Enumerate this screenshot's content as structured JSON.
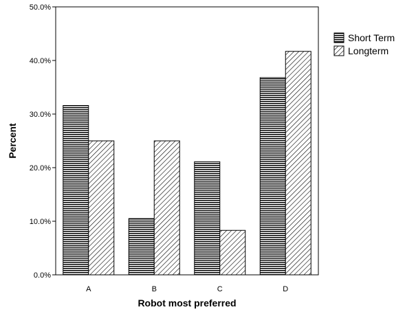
{
  "chart_data": {
    "type": "bar",
    "xlabel": "Robot most preferred",
    "ylabel": "Percent",
    "categories": [
      "A",
      "B",
      "C",
      "D"
    ],
    "ylim": [
      0,
      50
    ],
    "yticks": [
      "0.0%",
      "10.0%",
      "20.0%",
      "30.0%",
      "40.0%",
      "50.0%"
    ],
    "grid": false,
    "legend_position": "right",
    "series": [
      {
        "name": "Short Term",
        "values": [
          31.6,
          10.5,
          21.1,
          36.8
        ],
        "pattern": "horizontal-lines"
      },
      {
        "name": "Longterm",
        "values": [
          25.0,
          25.0,
          8.3,
          41.7
        ],
        "pattern": "diagonal-hatch"
      }
    ]
  }
}
